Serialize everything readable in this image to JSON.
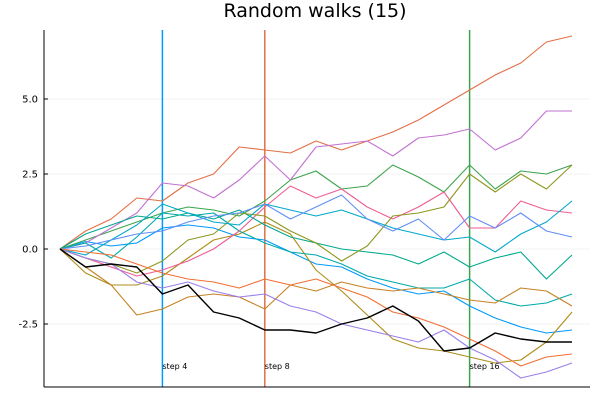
{
  "chart_data": {
    "type": "line",
    "title": "Random walks (15)",
    "xlabel": "",
    "ylabel": "",
    "xlim": [
      0,
      21
    ],
    "ylim": [
      -4.6,
      7.3
    ],
    "yticks": [
      5.0,
      2.5,
      0.0,
      -2.5
    ],
    "ytick_labels": [
      "5.0",
      "2.5",
      "0.0",
      "-2.5"
    ],
    "grid": true,
    "legend": "none",
    "vlines": [
      {
        "x": 4,
        "label": "step 4",
        "color": "#009AFA"
      },
      {
        "x": 8,
        "label": "step 8",
        "color": "#E26F46"
      },
      {
        "x": 16,
        "label": "step 16",
        "color": "#3DA44D"
      }
    ],
    "series": [
      {
        "color": "#009AFA",
        "values": [
          0,
          0.25,
          0.1,
          0.2,
          0.7,
          0.8,
          0.7,
          0.4,
          0.3,
          -0.1,
          -0.5,
          -0.6,
          -1.0,
          -1.3,
          -1.5,
          -1.4,
          -1.9,
          -2.3,
          -2.6,
          -2.8,
          -2.7
        ]
      },
      {
        "color": "#E26F46",
        "values": [
          0,
          0.6,
          1.0,
          1.7,
          1.6,
          2.2,
          2.5,
          3.4,
          3.3,
          3.2,
          3.6,
          3.3,
          3.6,
          3.9,
          4.3,
          4.8,
          5.3,
          5.8,
          6.2,
          6.9,
          7.1
        ]
      },
      {
        "color": "#3DA44D",
        "values": [
          0,
          0.3,
          0.6,
          0.9,
          1.2,
          1.4,
          1.3,
          1.1,
          1.6,
          2.3,
          2.6,
          2.0,
          2.1,
          2.8,
          2.4,
          1.9,
          2.8,
          2.0,
          2.6,
          2.5,
          2.8
        ]
      },
      {
        "color": "#C271D2",
        "values": [
          0,
          0.2,
          0.7,
          1.2,
          2.2,
          2.1,
          1.7,
          2.3,
          3.1,
          2.3,
          3.4,
          3.5,
          3.6,
          3.1,
          3.7,
          3.8,
          4.0,
          3.3,
          3.7,
          4.6,
          4.6
        ]
      },
      {
        "color": "#AC8D18",
        "values": [
          0,
          -0.8,
          -1.2,
          -1.2,
          -0.9,
          -0.3,
          0.3,
          0.5,
          0.9,
          0.5,
          -0.7,
          -1.4,
          -2.2,
          -3.0,
          -3.3,
          -3.4,
          -3.6,
          -3.8,
          -3.7,
          -3.1,
          -2.1
        ]
      },
      {
        "color": "#00A9AD",
        "values": [
          0,
          0.2,
          -0.3,
          0.4,
          1.2,
          1.1,
          1.2,
          0.6,
          0.2,
          -0.1,
          -0.2,
          -0.5,
          -0.9,
          -1.1,
          -1.3,
          -1.3,
          -1.0,
          -1.7,
          -1.9,
          -1.8,
          -1.5
        ]
      },
      {
        "color": "#ED5D92",
        "values": [
          0,
          -0.3,
          -0.6,
          -0.9,
          -0.7,
          -0.4,
          0.0,
          0.6,
          1.4,
          2.1,
          1.7,
          2.0,
          1.4,
          1.0,
          1.4,
          1.9,
          0.7,
          0.7,
          1.6,
          1.3,
          1.2
        ]
      },
      {
        "color": "#C68225",
        "values": [
          0,
          -0.6,
          -1.2,
          -2.2,
          -2.0,
          -1.6,
          -1.5,
          -1.6,
          -2.0,
          -1.2,
          -1.4,
          -1.1,
          -1.3,
          -1.4,
          -1.3,
          -1.5,
          -1.7,
          -1.8,
          -1.3,
          -1.4,
          -1.9
        ]
      },
      {
        "color": "#00A98D",
        "values": [
          0,
          0.5,
          0.8,
          1.1,
          1.0,
          1.2,
          1.0,
          1.3,
          0.8,
          0.4,
          0.2,
          0.0,
          -0.1,
          -0.2,
          -0.5,
          -0.1,
          -0.6,
          -0.3,
          -0.1,
          -1.0,
          -0.2
        ]
      },
      {
        "color": "#8E971E",
        "values": [
          0,
          -0.3,
          -0.5,
          -0.8,
          -0.4,
          0.3,
          0.5,
          1.2,
          1.1,
          0.6,
          0.2,
          -0.4,
          0.1,
          1.1,
          1.2,
          1.4,
          2.5,
          1.9,
          2.5,
          2.0,
          2.8
        ]
      },
      {
        "color": "#00A8CB",
        "values": [
          0,
          -0.2,
          0.3,
          0.8,
          1.5,
          1.2,
          0.9,
          0.8,
          1.5,
          1.3,
          1.1,
          1.3,
          1.0,
          0.7,
          0.5,
          0.3,
          0.4,
          -0.1,
          0.5,
          0.9,
          1.6
        ]
      },
      {
        "color": "#9B7FE9",
        "values": [
          0,
          -0.3,
          -0.5,
          -1.1,
          -1.3,
          -1.1,
          -1.4,
          -1.6,
          -1.5,
          -1.9,
          -2.1,
          -2.5,
          -2.7,
          -2.9,
          -3.1,
          -2.7,
          -3.3,
          -3.7,
          -4.3,
          -4.1,
          -3.8
        ]
      },
      {
        "color": "#618DF6",
        "values": [
          0,
          0.1,
          0.3,
          0.5,
          0.6,
          0.9,
          1.1,
          1.2,
          1.5,
          1.0,
          1.4,
          1.8,
          1.0,
          0.6,
          1.0,
          0.3,
          1.1,
          0.7,
          1.2,
          0.6,
          0.4
        ]
      },
      {
        "color": "#F06F34",
        "values": [
          0,
          -0.1,
          -0.2,
          -0.5,
          -0.8,
          -1.0,
          -1.1,
          -1.3,
          -1.0,
          -1.2,
          -1.0,
          -1.3,
          -1.6,
          -2.1,
          -2.3,
          -2.6,
          -3.0,
          -3.4,
          -3.9,
          -3.6,
          -3.5
        ]
      },
      {
        "color": "#000000",
        "values": [
          0,
          -0.6,
          -0.5,
          -0.6,
          -1.5,
          -1.2,
          -2.1,
          -2.3,
          -2.7,
          -2.7,
          -2.8,
          -2.5,
          -2.3,
          -1.9,
          -2.4,
          -3.4,
          -3.3,
          -2.8,
          -3.0,
          -3.1,
          -3.1
        ]
      }
    ]
  }
}
